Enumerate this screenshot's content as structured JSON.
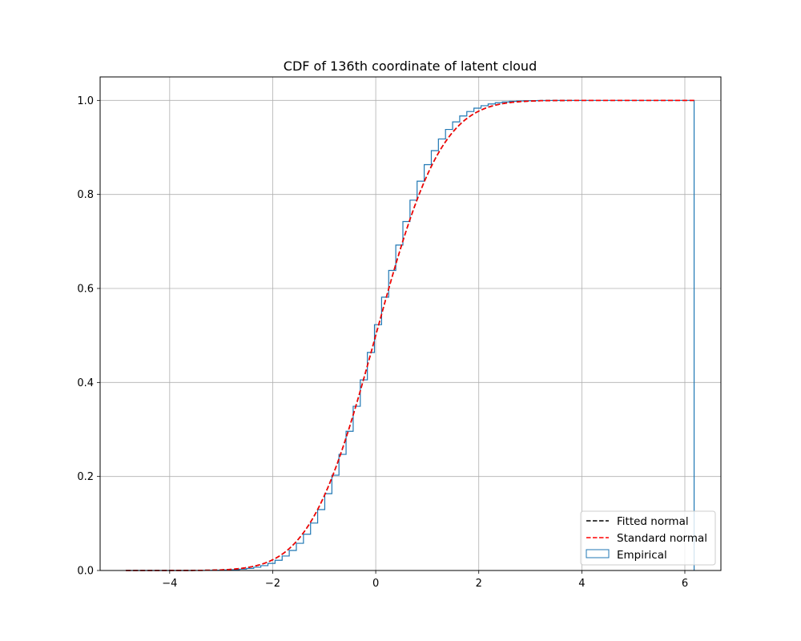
{
  "chart_data": {
    "type": "line",
    "title": "CDF of 136th coordinate of latent cloud",
    "xlabel": "",
    "ylabel": "",
    "xlim": [
      -5.35,
      6.7
    ],
    "ylim": [
      0,
      1.05
    ],
    "xticks": [
      -4,
      -2,
      0,
      2,
      4,
      6
    ],
    "yticks": [
      0.0,
      0.2,
      0.4,
      0.6,
      0.8,
      1.0
    ],
    "xtick_labels": [
      "−4",
      "−2",
      "0",
      "2",
      "4",
      "6"
    ],
    "ytick_labels": [
      "0.0",
      "0.2",
      "0.4",
      "0.6",
      "0.8",
      "1.0"
    ],
    "grid": true,
    "legend_position": "lower-right",
    "x_range": [
      -4.85,
      6.18
    ],
    "series": [
      {
        "name": "Fitted normal",
        "kind": "line",
        "style": "dashed",
        "color": "#000000",
        "mean": 0.0,
        "std": 1.0
      },
      {
        "name": "Standard normal",
        "kind": "line",
        "style": "dashed",
        "color": "#ff0000",
        "mean": 0.0,
        "std": 1.0
      },
      {
        "name": "Empirical",
        "kind": "step",
        "color": "#1f77b4",
        "bins": 80,
        "mean": 0.06,
        "std": 0.93
      }
    ]
  }
}
